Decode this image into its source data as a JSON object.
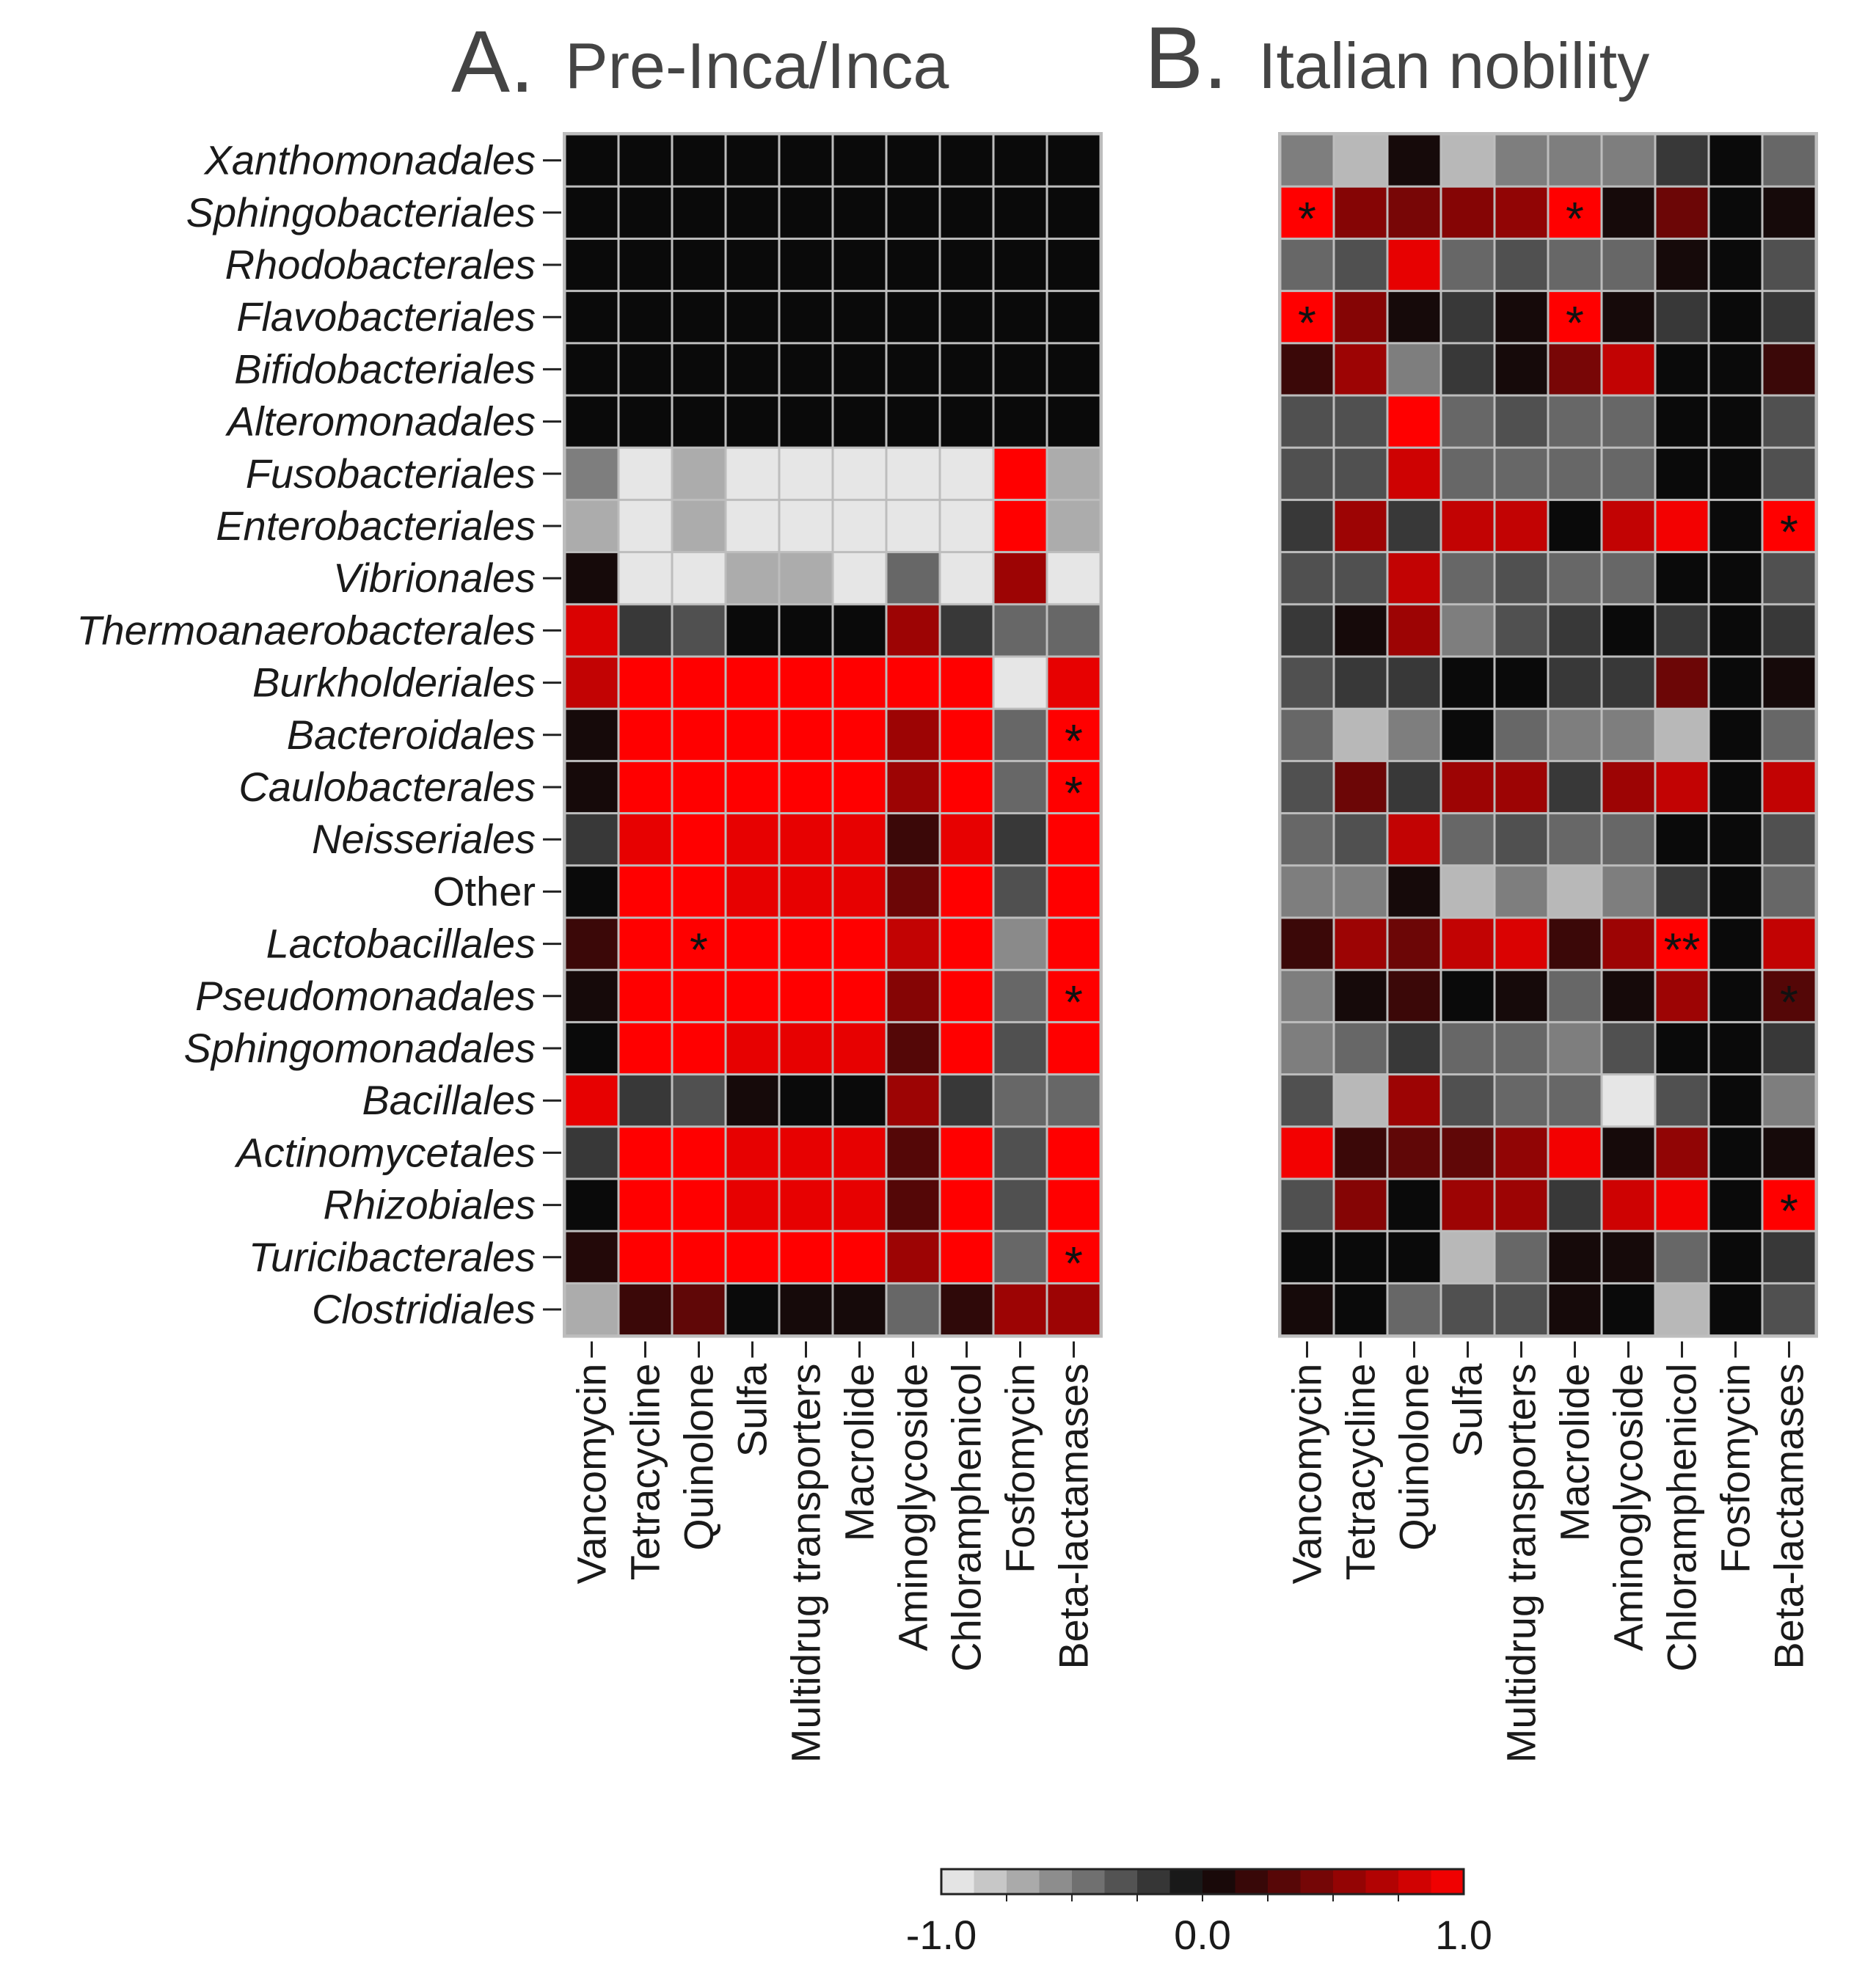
{
  "chart_data": {
    "type": "heatmap",
    "color_scale": {
      "min": -1.0,
      "max": 1.0,
      "tick_labels": [
        "-1.0",
        "0.0",
        "1.0"
      ],
      "tick_values": [
        -1.0,
        0.0,
        1.0
      ],
      "colors": {
        "low": "#f2f2f2",
        "mid": "#0a0a0a",
        "high": "#ff0000"
      }
    },
    "rows": [
      "Xanthomonadales",
      "Sphingobacteriales",
      "Rhodobacterales",
      "Flavobacteriales",
      "Bifidobacteriales",
      "Alteromonadales",
      "Fusobacteriales",
      "Enterobacteriales",
      "Vibrionales",
      "Thermoanaerobacterales",
      "Burkholderiales",
      "Bacteroidales",
      "Caulobacterales",
      "Neisseriales",
      "Other",
      "Lactobacillales",
      "Pseudomonadales",
      "Sphingomonadales",
      "Bacillales",
      "Actinomycetales",
      "Rhizobiales",
      "Turicibacterales",
      "Clostridiales"
    ],
    "italic_rows": [
      true,
      true,
      true,
      true,
      true,
      true,
      true,
      true,
      true,
      true,
      true,
      true,
      true,
      true,
      false,
      true,
      true,
      true,
      true,
      true,
      true,
      true,
      true
    ],
    "columns": [
      "Vancomycin",
      "Tetracycline",
      "Quinolone",
      "Sulfa",
      "Multidrug transporters",
      "Macrolide",
      "Aminoglycoside",
      "Chloramphenicol",
      "Fosfomycin",
      "Beta-lactamases"
    ],
    "panels": [
      {
        "letter": "A.",
        "title": "Pre-Inca/Inca",
        "values": [
          [
            0,
            0,
            0,
            0,
            0,
            0,
            0,
            0,
            0,
            0
          ],
          [
            0,
            0,
            0,
            0,
            0,
            0,
            0,
            0,
            0,
            0
          ],
          [
            0,
            0,
            0,
            0,
            0,
            0,
            0,
            0,
            0,
            0
          ],
          [
            0,
            0,
            0,
            0,
            0,
            0,
            0,
            0,
            0,
            0
          ],
          [
            0,
            0,
            0,
            0,
            0,
            0,
            0,
            0,
            0,
            0
          ],
          [
            0,
            0,
            0,
            0,
            0,
            0,
            0,
            0,
            0,
            0
          ],
          [
            -0.5,
            -0.95,
            -0.7,
            -0.95,
            -0.95,
            -0.95,
            -0.95,
            -0.95,
            1.0,
            -0.7
          ],
          [
            -0.7,
            -0.95,
            -0.7,
            -0.95,
            -0.95,
            -0.95,
            -0.95,
            -0.95,
            1.0,
            -0.7
          ],
          [
            0.05,
            -0.95,
            -0.95,
            -0.7,
            -0.7,
            -0.95,
            -0.4,
            -0.95,
            0.6,
            -0.95
          ],
          [
            0.85,
            -0.2,
            -0.3,
            0,
            0,
            0,
            0.6,
            -0.2,
            -0.4,
            -0.4
          ],
          [
            0.75,
            1.0,
            1.0,
            1.0,
            1.0,
            1.0,
            1.0,
            1.0,
            -0.95,
            0.9
          ],
          [
            0.05,
            1.0,
            1.0,
            1.0,
            1.0,
            1.0,
            0.6,
            1.0,
            -0.4,
            1.0
          ],
          [
            0.05,
            1.0,
            1.0,
            1.0,
            1.0,
            1.0,
            0.6,
            1.0,
            -0.4,
            1.0
          ],
          [
            -0.2,
            0.9,
            1.0,
            0.9,
            0.9,
            0.9,
            0.2,
            0.9,
            -0.2,
            1.0
          ],
          [
            0,
            1.0,
            1.0,
            0.9,
            0.9,
            0.9,
            0.4,
            1.0,
            -0.3,
            1.0
          ],
          [
            0.2,
            1.0,
            1.0,
            1.0,
            1.0,
            1.0,
            0.75,
            1.0,
            -0.55,
            1.0
          ],
          [
            0.05,
            1.0,
            1.0,
            1.0,
            1.0,
            1.0,
            0.5,
            1.0,
            -0.4,
            1.0
          ],
          [
            0,
            1.0,
            1.0,
            0.9,
            0.9,
            0.9,
            0.3,
            1.0,
            -0.3,
            1.0
          ],
          [
            0.9,
            -0.2,
            -0.3,
            0.05,
            0,
            0,
            0.6,
            -0.2,
            -0.4,
            -0.4
          ],
          [
            -0.2,
            1.0,
            1.0,
            0.9,
            0.9,
            0.9,
            0.3,
            1.0,
            -0.3,
            1.0
          ],
          [
            0,
            1.0,
            1.0,
            0.9,
            0.9,
            0.9,
            0.3,
            1.0,
            -0.3,
            1.0
          ],
          [
            0.1,
            1.0,
            1.0,
            1.0,
            1.0,
            1.0,
            0.6,
            1.0,
            -0.4,
            1.0
          ],
          [
            -0.7,
            0.2,
            0.35,
            0,
            0.05,
            0.05,
            -0.4,
            0.15,
            0.6,
            0.6
          ]
        ],
        "stars": [
          {
            "row": "Bacteroidales",
            "column": "Beta-lactamases",
            "mark": "*"
          },
          {
            "row": "Caulobacterales",
            "column": "Beta-lactamases",
            "mark": "*"
          },
          {
            "row": "Lactobacillales",
            "column": "Quinolone",
            "mark": "*"
          },
          {
            "row": "Pseudomonadales",
            "column": "Beta-lactamases",
            "mark": "*"
          },
          {
            "row": "Turicibacterales",
            "column": "Beta-lactamases",
            "mark": "*"
          }
        ]
      },
      {
        "letter": "B.",
        "title": "Italian nobility",
        "values": [
          [
            -0.5,
            -0.75,
            0.05,
            -0.75,
            -0.5,
            -0.5,
            -0.5,
            -0.2,
            0,
            -0.4
          ],
          [
            1.0,
            0.5,
            0.45,
            0.5,
            0.55,
            1.0,
            0.05,
            0.4,
            0,
            0.05
          ],
          [
            -0.4,
            -0.3,
            0.9,
            -0.4,
            -0.3,
            -0.4,
            -0.4,
            0.05,
            0,
            -0.3
          ],
          [
            1.0,
            0.5,
            0.05,
            -0.2,
            0.05,
            1.0,
            0.05,
            -0.2,
            0,
            -0.2
          ],
          [
            0.2,
            0.6,
            -0.5,
            -0.2,
            0.05,
            0.45,
            0.75,
            0,
            0,
            0.2
          ],
          [
            -0.3,
            -0.3,
            1.0,
            -0.4,
            -0.3,
            -0.4,
            -0.4,
            0,
            0,
            -0.3
          ],
          [
            -0.3,
            -0.3,
            0.8,
            -0.4,
            -0.4,
            -0.4,
            -0.4,
            0,
            0,
            -0.3
          ],
          [
            -0.2,
            0.6,
            -0.2,
            0.75,
            0.75,
            0,
            0.75,
            0.95,
            0,
            1.0
          ],
          [
            -0.3,
            -0.3,
            0.75,
            -0.4,
            -0.3,
            -0.4,
            -0.4,
            0,
            0,
            -0.3
          ],
          [
            -0.2,
            0.05,
            0.6,
            -0.5,
            -0.3,
            -0.2,
            0,
            -0.2,
            0,
            -0.2
          ],
          [
            -0.3,
            -0.2,
            -0.2,
            0,
            0,
            -0.2,
            -0.2,
            0.4,
            0,
            0.05
          ],
          [
            -0.4,
            -0.75,
            -0.5,
            0,
            -0.4,
            -0.5,
            -0.5,
            -0.75,
            0,
            -0.4
          ],
          [
            -0.3,
            0.4,
            -0.2,
            0.6,
            0.6,
            -0.2,
            0.6,
            0.75,
            0,
            0.75
          ],
          [
            -0.4,
            -0.3,
            0.75,
            -0.4,
            -0.3,
            -0.4,
            -0.4,
            0,
            0,
            -0.3
          ],
          [
            -0.5,
            -0.5,
            0.05,
            -0.75,
            -0.5,
            -0.75,
            -0.5,
            -0.2,
            0,
            -0.4
          ],
          [
            0.2,
            0.6,
            0.4,
            0.75,
            0.85,
            0.2,
            0.6,
            1.0,
            0,
            0.75
          ],
          [
            -0.5,
            0.05,
            0.2,
            0,
            0.05,
            -0.4,
            0.05,
            0.6,
            0,
            0.3
          ],
          [
            -0.5,
            -0.4,
            -0.2,
            -0.4,
            -0.4,
            -0.5,
            -0.3,
            0,
            0,
            -0.2
          ],
          [
            -0.3,
            -0.75,
            0.6,
            -0.3,
            -0.4,
            -0.4,
            -0.95,
            -0.3,
            0,
            -0.5
          ],
          [
            0.95,
            0.2,
            0.35,
            0.35,
            0.55,
            0.95,
            0.05,
            0.55,
            0,
            0.05
          ],
          [
            -0.3,
            0.5,
            0,
            0.6,
            0.6,
            -0.2,
            0.8,
            0.95,
            0,
            1.0
          ],
          [
            0,
            0,
            0,
            -0.75,
            -0.4,
            0.05,
            0.05,
            -0.4,
            0,
            -0.2
          ],
          [
            0.05,
            0,
            -0.4,
            -0.3,
            -0.3,
            0.05,
            0,
            -0.75,
            0,
            -0.3
          ]
        ],
        "stars": [
          {
            "row": "Sphingobacteriales",
            "column": "Vancomycin",
            "mark": "*"
          },
          {
            "row": "Sphingobacteriales",
            "column": "Macrolide",
            "mark": "*"
          },
          {
            "row": "Flavobacteriales",
            "column": "Vancomycin",
            "mark": "*"
          },
          {
            "row": "Flavobacteriales",
            "column": "Macrolide",
            "mark": "*"
          },
          {
            "row": "Enterobacteriales",
            "column": "Beta-lactamases",
            "mark": "*"
          },
          {
            "row": "Lactobacillales",
            "column": "Chloramphenicol",
            "mark": "**"
          },
          {
            "row": "Pseudomonadales",
            "column": "Beta-lactamases",
            "mark": "*"
          },
          {
            "row": "Rhizobiales",
            "column": "Beta-lactamases",
            "mark": "*"
          }
        ]
      }
    ]
  }
}
